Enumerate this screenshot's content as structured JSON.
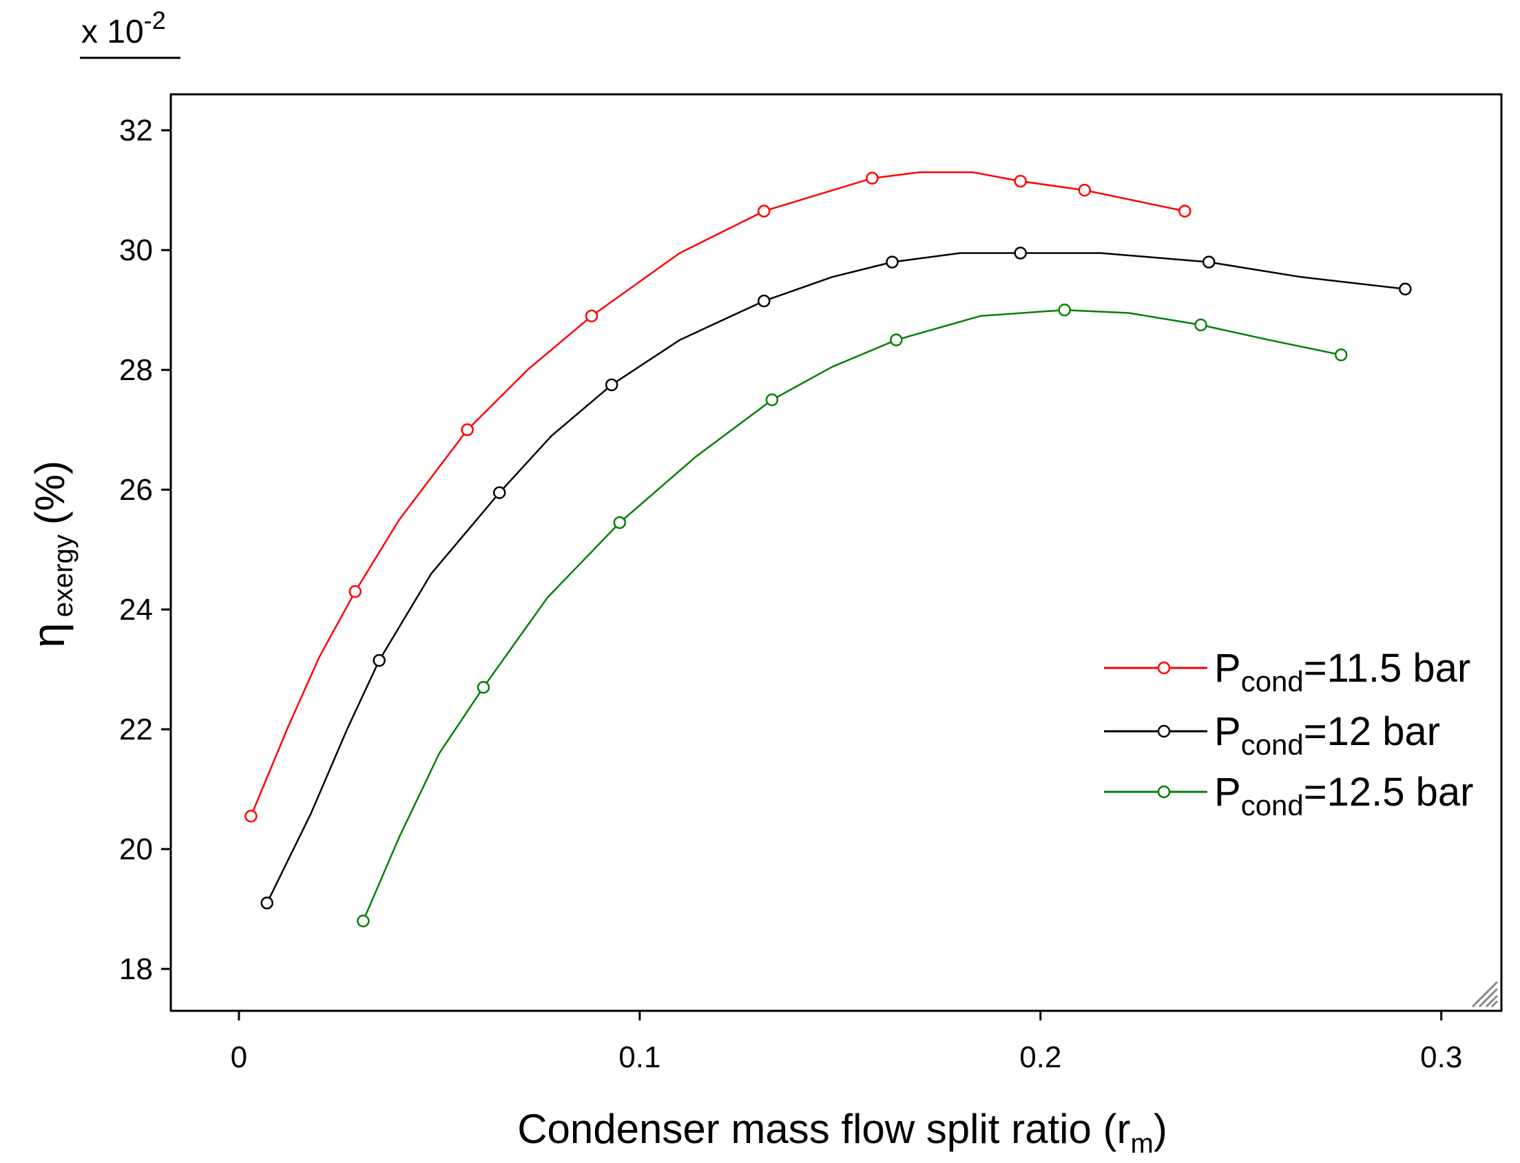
{
  "chart_data": {
    "type": "line",
    "title": "",
    "xlabel": {
      "main": "Condenser mass flow split ratio (r",
      "sub": "m",
      "end": ")"
    },
    "ylabel": {
      "symbol": "η",
      "sub": "exergy",
      "unit": "(%)"
    },
    "multiplier": {
      "base": "x 10",
      "exp": "-2"
    },
    "xlim": [
      -0.017,
      0.315
    ],
    "ylim": [
      17.3,
      32.6
    ],
    "xticks": [
      0,
      0.1,
      0.2,
      0.3
    ],
    "xtick_labels": [
      "0",
      "0.1",
      "0.2",
      "0.3"
    ],
    "yticks": [
      18,
      20,
      22,
      24,
      26,
      28,
      30,
      32
    ],
    "ytick_labels": [
      "18",
      "20",
      "22",
      "24",
      "26",
      "28",
      "30",
      "32"
    ],
    "legend_position": "center-right",
    "series": [
      {
        "name": "P_cond=11.5 bar",
        "label_main": "P",
        "label_sub": "cond",
        "label_rest": "=11.5 bar",
        "color": "#ff0000",
        "points": [
          [
            0.003,
            20.55
          ],
          [
            0.029,
            24.3
          ],
          [
            0.057,
            27.0
          ],
          [
            0.088,
            28.9
          ],
          [
            0.131,
            30.65
          ],
          [
            0.158,
            31.2
          ],
          [
            0.195,
            31.15
          ],
          [
            0.211,
            31.0
          ],
          [
            0.236,
            30.65
          ]
        ],
        "curve": [
          [
            0.003,
            20.55
          ],
          [
            0.012,
            22.0
          ],
          [
            0.02,
            23.2
          ],
          [
            0.029,
            24.3
          ],
          [
            0.04,
            25.5
          ],
          [
            0.057,
            27.0
          ],
          [
            0.072,
            28.0
          ],
          [
            0.088,
            28.9
          ],
          [
            0.11,
            29.95
          ],
          [
            0.131,
            30.65
          ],
          [
            0.158,
            31.2
          ],
          [
            0.17,
            31.3
          ],
          [
            0.183,
            31.3
          ],
          [
            0.195,
            31.15
          ],
          [
            0.211,
            31.0
          ],
          [
            0.236,
            30.65
          ]
        ]
      },
      {
        "name": "P_cond=12 bar",
        "label_main": "P",
        "label_sub": "cond",
        "label_rest": "=12 bar",
        "color": "#000000",
        "points": [
          [
            0.007,
            19.1
          ],
          [
            0.035,
            23.15
          ],
          [
            0.065,
            25.95
          ],
          [
            0.093,
            27.75
          ],
          [
            0.131,
            29.15
          ],
          [
            0.163,
            29.8
          ],
          [
            0.195,
            29.95
          ],
          [
            0.242,
            29.8
          ],
          [
            0.291,
            29.35
          ]
        ],
        "curve": [
          [
            0.007,
            19.1
          ],
          [
            0.018,
            20.6
          ],
          [
            0.027,
            22.0
          ],
          [
            0.035,
            23.15
          ],
          [
            0.048,
            24.6
          ],
          [
            0.065,
            25.95
          ],
          [
            0.078,
            26.9
          ],
          [
            0.093,
            27.75
          ],
          [
            0.11,
            28.5
          ],
          [
            0.131,
            29.15
          ],
          [
            0.148,
            29.55
          ],
          [
            0.163,
            29.8
          ],
          [
            0.18,
            29.95
          ],
          [
            0.195,
            29.95
          ],
          [
            0.215,
            29.95
          ],
          [
            0.242,
            29.8
          ],
          [
            0.265,
            29.55
          ],
          [
            0.291,
            29.35
          ]
        ]
      },
      {
        "name": "P_cond=12.5 bar",
        "label_main": "P",
        "label_sub": "cond",
        "label_rest": "=12.5 bar",
        "color": "#008000",
        "points": [
          [
            0.031,
            18.8
          ],
          [
            0.061,
            22.7
          ],
          [
            0.095,
            25.45
          ],
          [
            0.133,
            27.5
          ],
          [
            0.164,
            28.5
          ],
          [
            0.206,
            29.0
          ],
          [
            0.24,
            28.75
          ],
          [
            0.275,
            28.25
          ]
        ],
        "curve": [
          [
            0.031,
            18.8
          ],
          [
            0.04,
            20.2
          ],
          [
            0.05,
            21.6
          ],
          [
            0.061,
            22.7
          ],
          [
            0.077,
            24.2
          ],
          [
            0.095,
            25.45
          ],
          [
            0.114,
            26.55
          ],
          [
            0.133,
            27.5
          ],
          [
            0.148,
            28.05
          ],
          [
            0.164,
            28.5
          ],
          [
            0.185,
            28.9
          ],
          [
            0.206,
            29.0
          ],
          [
            0.222,
            28.95
          ],
          [
            0.24,
            28.75
          ],
          [
            0.257,
            28.5
          ],
          [
            0.275,
            28.25
          ]
        ]
      }
    ]
  }
}
